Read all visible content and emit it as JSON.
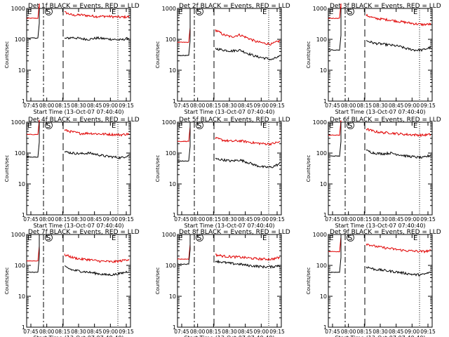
{
  "chart_data": {
    "type": "line",
    "yscale": "log",
    "ylim": [
      1,
      1000
    ],
    "yticks": [
      "1000",
      "100",
      "10",
      "1"
    ],
    "ylabel": "Counts/sec",
    "xlabel": "Start Time (13-Oct-07 07:40:40)",
    "xticks": [
      "07:45",
      "08:00",
      "08:15",
      "08:30",
      "08:45",
      "09:00",
      "09:15"
    ],
    "marker_labels": {
      "start": "S",
      "end": "E"
    },
    "colors": {
      "events": "#000000",
      "lld": "#e00000"
    },
    "panels": [
      {
        "title": "Det 1f BLACK = Events, RED = LLD",
        "events_pre": 110,
        "events_after": [
          105,
          115,
          105,
          100,
          110,
          105,
          100,
          95,
          110
        ],
        "lld_pre": 480,
        "lld_after": [
          750,
          600,
          620,
          580,
          550,
          560,
          540,
          520,
          540
        ]
      },
      {
        "title": "Det 2f BLACK = Events, RED = LLD",
        "events_pre": 30,
        "events_after": [
          50,
          45,
          42,
          45,
          35,
          28,
          25,
          22,
          28
        ],
        "lld_pre": 80,
        "lld_after": [
          200,
          140,
          120,
          140,
          110,
          85,
          75,
          70,
          90
        ]
      },
      {
        "title": "Det 3f BLACK = Events, RED = LLD",
        "events_pre": 45,
        "events_after": [
          90,
          75,
          70,
          65,
          60,
          50,
          45,
          45,
          55
        ],
        "lld_pre": 480,
        "lld_after": [
          600,
          480,
          450,
          420,
          380,
          350,
          320,
          300,
          310
        ]
      },
      {
        "title": "Det 4f BLACK = Events, RED = LLD",
        "events_pre": 75,
        "events_after": [
          110,
          100,
          95,
          100,
          90,
          80,
          75,
          70,
          85
        ],
        "lld_pre": 400,
        "lld_after": [
          550,
          480,
          430,
          440,
          420,
          410,
          400,
          390,
          420
        ]
      },
      {
        "title": "Det 5f BLACK = Events, RED = LLD",
        "events_pre": 55,
        "events_after": [
          65,
          60,
          55,
          60,
          50,
          40,
          35,
          35,
          45
        ],
        "lld_pre": 240,
        "lld_after": [
          300,
          260,
          240,
          250,
          230,
          210,
          200,
          200,
          230
        ]
      },
      {
        "title": "Det 6f BLACK = Events, RED = LLD",
        "events_pre": 80,
        "events_after": [
          120,
          100,
          95,
          100,
          90,
          80,
          75,
          70,
          85
        ],
        "lld_pre": 380,
        "lld_after": [
          600,
          500,
          460,
          450,
          420,
          400,
          390,
          380,
          400
        ]
      },
      {
        "title": "Det 7f BLACK = Events, RED = LLD",
        "events_pre": 60,
        "events_after": [
          90,
          70,
          65,
          60,
          55,
          50,
          50,
          55,
          65
        ],
        "lld_pre": 140,
        "lld_after": [
          220,
          180,
          160,
          155,
          140,
          135,
          130,
          140,
          160
        ]
      },
      {
        "title": "Det 8f BLACK = Events, RED = LLD",
        "events_pre": 110,
        "events_after": [
          140,
          125,
          115,
          110,
          100,
          95,
          90,
          90,
          100
        ],
        "lld_pre": 160,
        "lld_after": [
          220,
          200,
          190,
          185,
          175,
          165,
          160,
          160,
          180
        ]
      },
      {
        "title": "Det 9f BLACK = Events, RED = LLD",
        "events_pre": 60,
        "events_after": [
          90,
          75,
          70,
          65,
          60,
          55,
          50,
          50,
          60
        ],
        "lld_pre": 280,
        "lld_after": [
          500,
          420,
          380,
          350,
          320,
          300,
          290,
          280,
          300
        ]
      }
    ]
  }
}
